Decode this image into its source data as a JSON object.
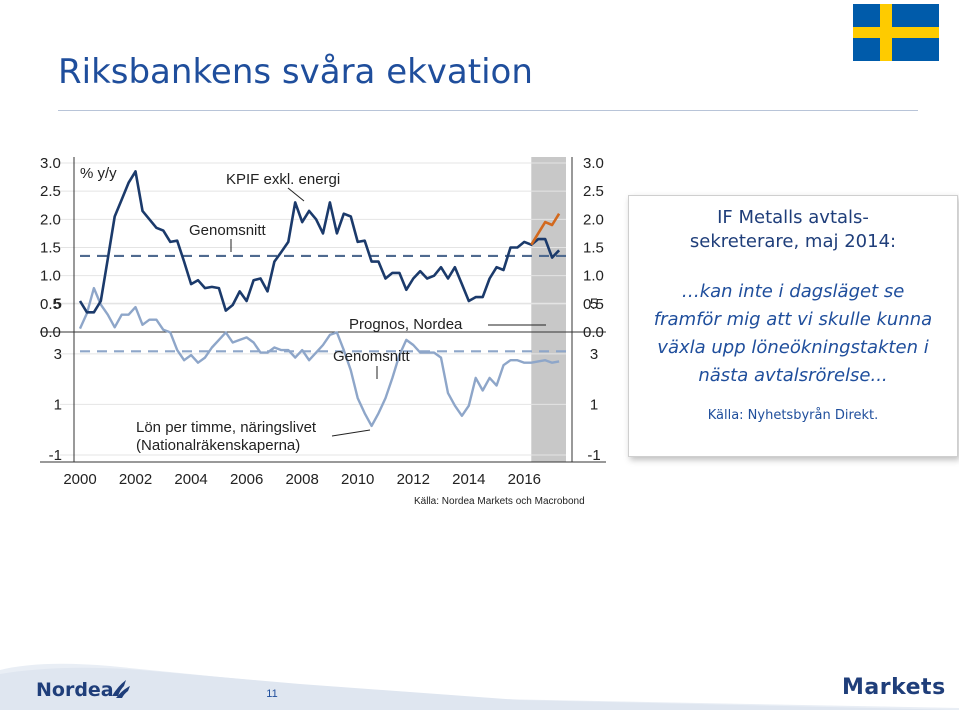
{
  "slide": {
    "title": "Riksbankens svåra ekvation",
    "flag_colors": {
      "blue": "#005BAA",
      "yellow": "#FECB00"
    },
    "footer": {
      "company": "Nordea",
      "page_number": "11",
      "brand": "Markets"
    }
  },
  "quote_box": {
    "heading_lines": [
      "IF Metalls avtals-",
      "sekreterare, maj 2014:"
    ],
    "quote_lines": [
      "…kan inte i dagsläget se",
      "framför mig att vi skulle kunna",
      "växla upp löneökningstakten i",
      "nästa avtalsrörelse... "
    ],
    "source": "Källa: Nyhetsbyrån Direkt."
  },
  "chart_source": "Källa: Nordea Markets och Macrobond",
  "chart_data": [
    {
      "type": "line",
      "unit_label": "% y/y",
      "ylim": [
        0,
        3
      ],
      "yticks": [
        "0.0",
        "0.5",
        "1.0",
        "1.5",
        "2.0",
        "2.5",
        "3.0"
      ],
      "xlim": [
        2000,
        2017.5
      ],
      "xticks": [
        "2000",
        "2002",
        "2004",
        "2006",
        "2008",
        "2010",
        "2012",
        "2014",
        "2016"
      ],
      "forecast_from": 2016.25,
      "colors": {
        "series": "#1b3a6b",
        "forecast": "#d2691e",
        "average": "#4f6a8f",
        "shade": "#c8c8c8"
      },
      "annotations": {
        "series": "KPIF exkl. energi",
        "average": "Genomsnitt",
        "forecast": "Prognos, Nordea"
      },
      "average": 1.35,
      "series": [
        {
          "name": "KPIF exkl. energi",
          "x": [
            2000.0,
            2000.25,
            2000.5,
            2000.75,
            2001.0,
            2001.25,
            2001.5,
            2001.75,
            2002.0,
            2002.25,
            2002.5,
            2002.75,
            2003.0,
            2003.25,
            2003.5,
            2003.75,
            2004.0,
            2004.25,
            2004.5,
            2004.75,
            2005.0,
            2005.25,
            2005.5,
            2005.75,
            2006.0,
            2006.25,
            2006.5,
            2006.75,
            2007.0,
            2007.25,
            2007.5,
            2007.75,
            2008.0,
            2008.25,
            2008.5,
            2008.75,
            2009.0,
            2009.25,
            2009.5,
            2009.75,
            2010.0,
            2010.25,
            2010.5,
            2010.75,
            2011.0,
            2011.25,
            2011.5,
            2011.75,
            2012.0,
            2012.25,
            2012.5,
            2012.75,
            2013.0,
            2013.25,
            2013.5,
            2013.75,
            2014.0,
            2014.25,
            2014.5,
            2014.75,
            2015.0,
            2015.25,
            2015.5,
            2015.75,
            2016.0,
            2016.25,
            2016.5,
            2016.75,
            2017.0,
            2017.25
          ],
          "values": [
            0.55,
            0.35,
            0.35,
            0.55,
            1.3,
            2.05,
            2.35,
            2.65,
            2.85,
            2.15,
            2.0,
            1.85,
            1.8,
            1.6,
            1.62,
            1.25,
            0.85,
            0.92,
            0.78,
            0.8,
            0.78,
            0.38,
            0.48,
            0.72,
            0.55,
            0.92,
            0.95,
            0.72,
            1.25,
            1.42,
            1.6,
            2.3,
            1.95,
            2.15,
            2.0,
            1.75,
            2.3,
            1.75,
            2.1,
            2.05,
            1.6,
            1.62,
            1.25,
            1.25,
            0.95,
            1.05,
            1.05,
            0.75,
            0.95,
            1.08,
            0.95,
            1.0,
            1.15,
            0.95,
            1.15,
            0.85,
            0.55,
            0.62,
            0.62,
            0.95,
            1.15,
            1.1,
            1.5,
            1.5,
            1.6,
            1.55,
            1.65,
            1.65,
            1.32,
            1.45
          ]
        },
        {
          "name": "Prognos, Nordea",
          "x": [
            2016.25,
            2016.5,
            2016.75,
            2017.0,
            2017.25
          ],
          "values": [
            1.55,
            1.75,
            1.95,
            1.9,
            2.1
          ]
        }
      ]
    },
    {
      "type": "line",
      "ylim": [
        -1,
        6
      ],
      "yticks": [
        "-1",
        "1",
        "3",
        "5"
      ],
      "xlim": [
        2000,
        2017.5
      ],
      "colors": {
        "series": "#8ea6c9",
        "average": "#8ea6c9"
      },
      "annotations": {
        "series_lines": [
          "Lön per timme, näringslivet",
          "(Nationalräkenskaperna)"
        ],
        "average": "Genomsnitt"
      },
      "average": 3.1,
      "series": [
        {
          "name": "Lön per timme, näringslivet",
          "x": [
            2000.0,
            2000.25,
            2000.5,
            2000.75,
            2001.0,
            2001.25,
            2001.5,
            2001.75,
            2002.0,
            2002.25,
            2002.5,
            2002.75,
            2003.0,
            2003.25,
            2003.5,
            2003.75,
            2004.0,
            2004.25,
            2004.5,
            2004.75,
            2005.0,
            2005.25,
            2005.5,
            2005.75,
            2006.0,
            2006.25,
            2006.5,
            2006.75,
            2007.0,
            2007.25,
            2007.5,
            2007.75,
            2008.0,
            2008.25,
            2008.5,
            2008.75,
            2009.0,
            2009.25,
            2009.5,
            2009.75,
            2010.0,
            2010.25,
            2010.5,
            2010.75,
            2011.0,
            2011.25,
            2011.5,
            2011.75,
            2012.0,
            2012.25,
            2012.5,
            2012.75,
            2013.0,
            2013.25,
            2013.5,
            2013.75,
            2014.0,
            2014.25,
            2014.5,
            2014.75,
            2015.0,
            2015.25,
            2015.5,
            2015.75,
            2016.0,
            2016.25,
            2016.5,
            2016.75,
            2017.0,
            2017.25
          ],
          "values": [
            4.0,
            4.6,
            5.6,
            4.95,
            4.55,
            4.05,
            4.55,
            4.55,
            4.85,
            4.15,
            4.35,
            4.35,
            3.95,
            3.85,
            3.15,
            2.75,
            2.95,
            2.65,
            2.85,
            3.25,
            3.55,
            3.85,
            3.45,
            3.55,
            3.65,
            3.45,
            3.05,
            3.05,
            3.25,
            3.15,
            3.15,
            2.85,
            3.15,
            2.75,
            3.05,
            3.35,
            3.75,
            3.85,
            3.15,
            2.35,
            1.25,
            0.65,
            0.15,
            0.65,
            1.25,
            2.05,
            2.95,
            3.55,
            3.35,
            3.05,
            3.05,
            3.05,
            2.85,
            1.45,
            0.95,
            0.55,
            0.95,
            2.05,
            1.55,
            2.05,
            1.75,
            2.55,
            2.75,
            2.75,
            2.65,
            2.65,
            2.7,
            2.75,
            2.65,
            2.7
          ]
        }
      ]
    }
  ]
}
